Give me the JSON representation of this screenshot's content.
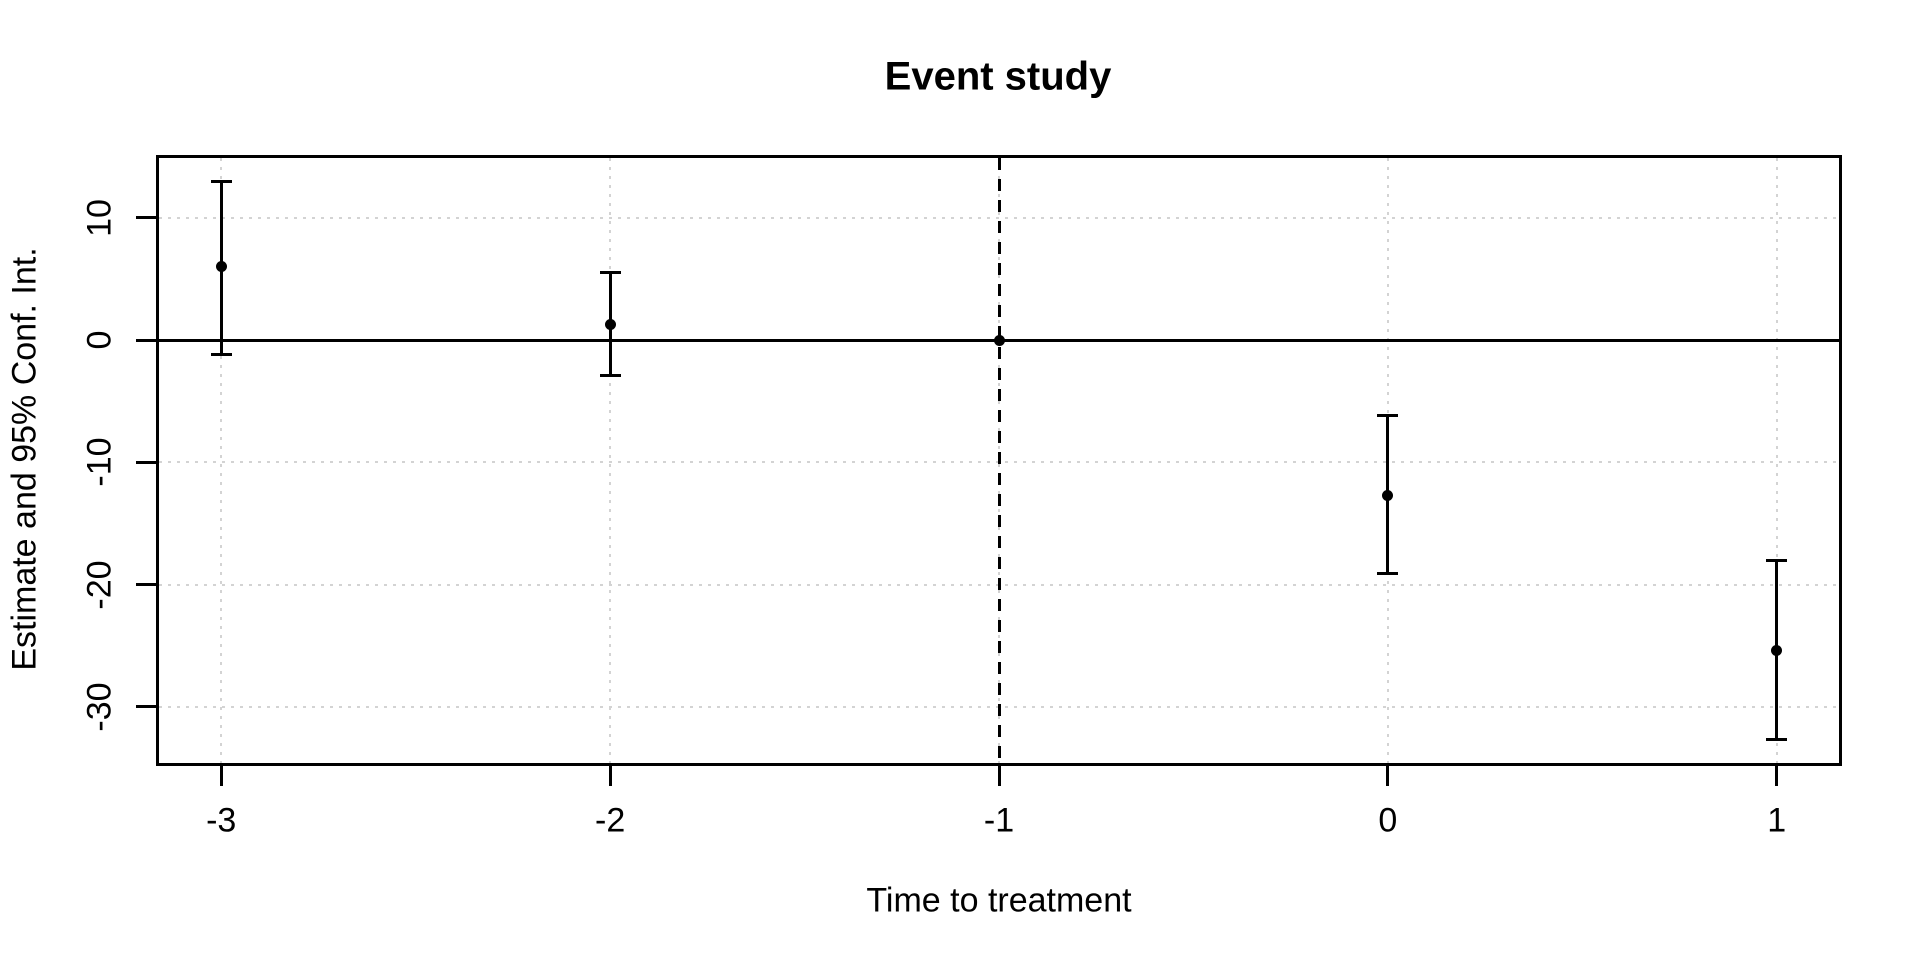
{
  "chart_data": {
    "type": "scatter",
    "title": "Event study",
    "xlabel": "Time to treatment",
    "ylabel": "Estimate and 95% Conf. Int.",
    "x": [
      -3,
      -2,
      -1,
      0,
      1
    ],
    "series": [
      {
        "name": "estimate",
        "values": [
          6.0,
          1.3,
          0.0,
          -12.7,
          -25.4
        ]
      },
      {
        "name": "ci_low",
        "values": [
          -1.2,
          -2.9,
          null,
          -19.1,
          -32.7
        ]
      },
      {
        "name": "ci_high",
        "values": [
          13.0,
          5.5,
          null,
          -6.2,
          -18.0
        ]
      }
    ],
    "xticks": [
      -3,
      -2,
      -1,
      0,
      1
    ],
    "yticks": [
      10,
      0,
      -10,
      -20,
      -30
    ],
    "xlim": [
      -3.16,
      1.16
    ],
    "ylim": [
      -34.6,
      14.9
    ],
    "grid": true,
    "grid_style": "dotted",
    "legend": "none",
    "marker": "filled-circle",
    "reference_lines": {
      "horizontal_solid_y": 0,
      "vertical_dashed_x": -1
    },
    "colors": {
      "foreground": "#000000",
      "grid": "#D3D3D3",
      "background": "#FFFFFF"
    }
  }
}
